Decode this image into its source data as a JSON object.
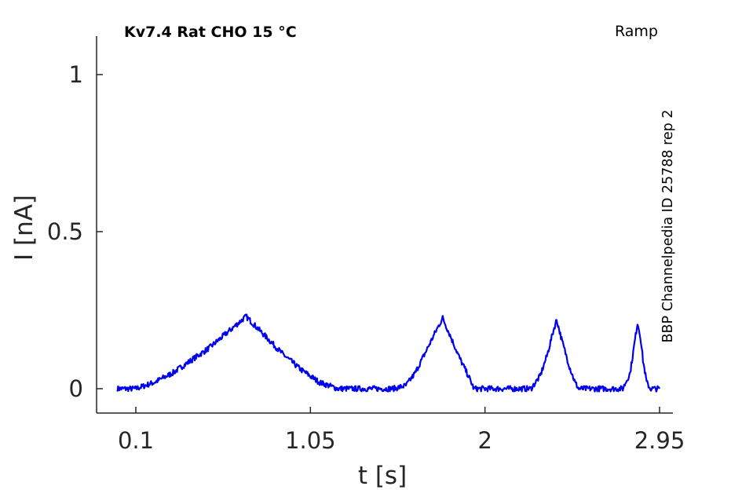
{
  "chart_data": {
    "type": "line",
    "title": "Kv7.4  Rat  CHO  15 °C",
    "protocol_label": "Ramp",
    "side_label": "BBP Channelpedia ID 25788 rep 2",
    "xlabel": "t [s]",
    "ylabel": "I [nA]",
    "xlim": [
      -0.15,
      3.05
    ],
    "ylim": [
      -0.08,
      1.12
    ],
    "x_ticks": [
      0.1,
      1.05,
      2,
      2.95
    ],
    "x_tick_labels": [
      "0.1",
      "1.05",
      "2",
      "2.95"
    ],
    "y_ticks": [
      0,
      0.5,
      1
    ],
    "y_tick_labels": [
      "0",
      "0.5",
      "1"
    ],
    "grid": false,
    "series": [
      {
        "color": "#0000ee",
        "points": [
          [
            0.0,
            0.0
          ],
          [
            0.1,
            0.0
          ],
          [
            0.2,
            0.02
          ],
          [
            0.3,
            0.05
          ],
          [
            0.4,
            0.09
          ],
          [
            0.5,
            0.13
          ],
          [
            0.6,
            0.18
          ],
          [
            0.7,
            0.23
          ],
          [
            0.8,
            0.17
          ],
          [
            0.9,
            0.11
          ],
          [
            1.0,
            0.06
          ],
          [
            1.1,
            0.02
          ],
          [
            1.2,
            0.0
          ],
          [
            1.3,
            0.0
          ],
          [
            1.5,
            0.0
          ],
          [
            1.57,
            0.01
          ],
          [
            1.62,
            0.05
          ],
          [
            1.68,
            0.12
          ],
          [
            1.73,
            0.18
          ],
          [
            1.77,
            0.225
          ],
          [
            1.81,
            0.17
          ],
          [
            1.86,
            0.1
          ],
          [
            1.91,
            0.04
          ],
          [
            1.94,
            0.0
          ],
          [
            2.0,
            0.0
          ],
          [
            2.25,
            0.0
          ],
          [
            2.3,
            0.04
          ],
          [
            2.34,
            0.11
          ],
          [
            2.37,
            0.18
          ],
          [
            2.39,
            0.22
          ],
          [
            2.42,
            0.15
          ],
          [
            2.46,
            0.07
          ],
          [
            2.49,
            0.02
          ],
          [
            2.51,
            0.0
          ],
          [
            2.75,
            0.0
          ],
          [
            2.79,
            0.05
          ],
          [
            2.81,
            0.13
          ],
          [
            2.83,
            0.21
          ],
          [
            2.845,
            0.17
          ],
          [
            2.86,
            0.09
          ],
          [
            2.88,
            0.02
          ],
          [
            2.9,
            0.0
          ],
          [
            2.95,
            0.0
          ]
        ]
      }
    ]
  }
}
